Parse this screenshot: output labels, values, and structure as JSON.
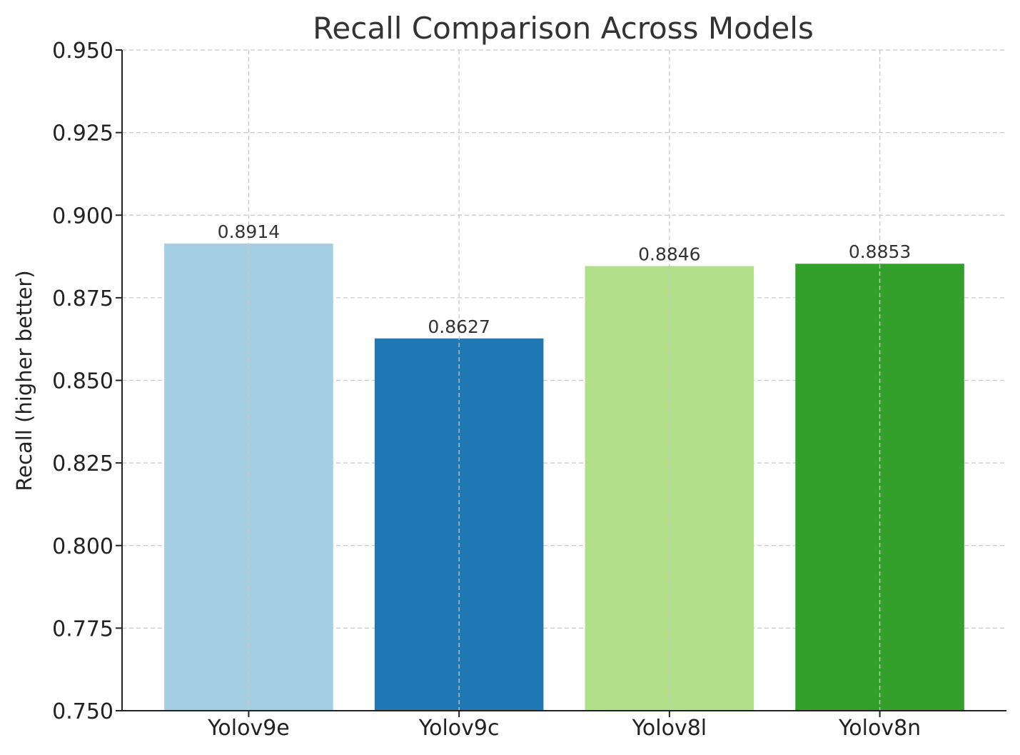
{
  "chart_data": {
    "type": "bar",
    "title": "Recall Comparison Across Models",
    "xlabel": "",
    "ylabel": "Recall (higher better)",
    "categories": [
      "Yolov9e",
      "Yolov9c",
      "Yolov8l",
      "Yolov8n"
    ],
    "values": [
      0.8914,
      0.8627,
      0.8846,
      0.8853
    ],
    "value_labels": [
      "0.8914",
      "0.8627",
      "0.8846",
      "0.8853"
    ],
    "colors": [
      "#a6cee3",
      "#1f78b4",
      "#b2df8a",
      "#33a02c"
    ],
    "ylim": [
      0.75,
      0.95
    ],
    "yticks": [
      0.75,
      0.775,
      0.8,
      0.825,
      0.85,
      0.875,
      0.9,
      0.925,
      0.95
    ],
    "ytick_labels": [
      "0.750",
      "0.775",
      "0.800",
      "0.825",
      "0.850",
      "0.875",
      "0.900",
      "0.925",
      "0.950"
    ],
    "grid": true,
    "grid_style": "dashed"
  }
}
